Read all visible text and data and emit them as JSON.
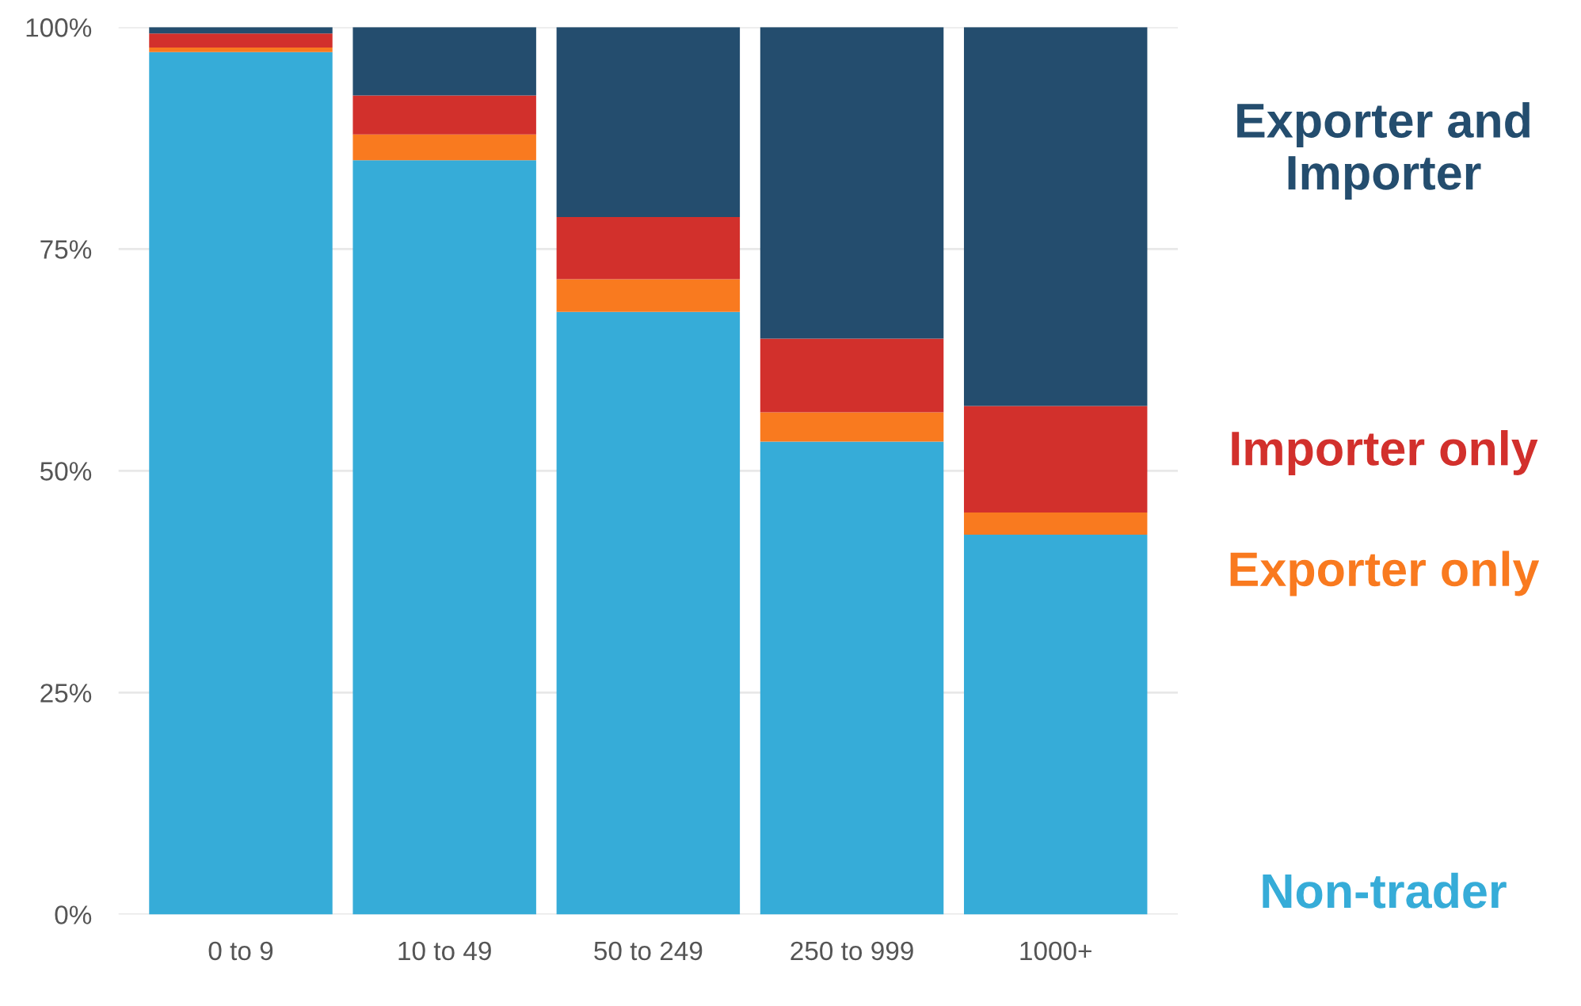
{
  "chart_data": {
    "type": "bar",
    "stacked": true,
    "categories": [
      "0 to 9",
      "10 to 49",
      "50 to 249",
      "250 to 999",
      "1000+"
    ],
    "series": [
      {
        "name": "Non-trader",
        "color": "#36acd8",
        "values": [
          97.2,
          85.0,
          67.9,
          53.3,
          42.8
        ]
      },
      {
        "name": "Exporter only",
        "color": "#f97a1f",
        "values": [
          0.5,
          2.9,
          3.7,
          3.3,
          2.5
        ]
      },
      {
        "name": "Importer only",
        "color": "#d2302c",
        "values": [
          1.6,
          4.4,
          7.0,
          8.3,
          12.0
        ]
      },
      {
        "name": "Exporter and Importer",
        "color": "#244d6e",
        "values": [
          0.7,
          7.7,
          21.4,
          35.1,
          42.7
        ]
      }
    ],
    "ylim": [
      0,
      100
    ],
    "yticks": [
      {
        "value": 0,
        "label": "0%"
      },
      {
        "value": 25,
        "label": "25%"
      },
      {
        "value": 50,
        "label": "50%"
      },
      {
        "value": 75,
        "label": "75%"
      },
      {
        "value": 100,
        "label": "100%"
      }
    ],
    "grid": "y",
    "legend": "right"
  }
}
